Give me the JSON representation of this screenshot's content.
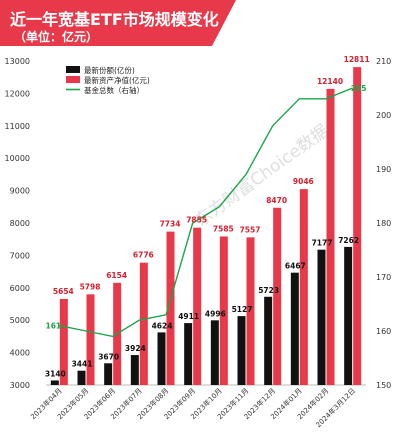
{
  "chart_data": {
    "type": "bar",
    "title": "近一年宽基ETF市场规模变化",
    "subtitle": "（单位：亿元）",
    "watermark": "东方财富Choice数据",
    "categories": [
      "2023年04月",
      "2023年05月",
      "2023年06月",
      "2023年07月",
      "2023年08月",
      "2023年09月",
      "2023年10月",
      "2023年11月",
      "2023年12月",
      "2024年01月",
      "2024年02月",
      "2024年3月12日"
    ],
    "series": [
      {
        "name": "最新份额(亿份)",
        "type": "bar",
        "axis": "left",
        "color": "#111111",
        "values": [
          3140,
          3441,
          3670,
          3924,
          4624,
          4911,
          4996,
          5127,
          5723,
          6467,
          7177,
          7262
        ]
      },
      {
        "name": "最新资产净值(亿元)",
        "type": "bar",
        "axis": "left",
        "color": "#e8394a",
        "values": [
          5654,
          5798,
          6154,
          6776,
          7734,
          7855,
          7585,
          7557,
          8470,
          9046,
          12140,
          12811
        ]
      },
      {
        "name": "基金总数（右轴）",
        "type": "line",
        "axis": "right",
        "color": "#1aa64a",
        "values": [
          161,
          160,
          159,
          162,
          163,
          180,
          183,
          189,
          198,
          203,
          203,
          205
        ]
      }
    ],
    "line_point_labels": {
      "first": "161",
      "last": "205"
    },
    "y_left": {
      "min": 3000,
      "max": 13000,
      "ticks": [
        3000,
        4000,
        5000,
        6000,
        7000,
        8000,
        9000,
        10000,
        11000,
        12000,
        13000
      ]
    },
    "y_right": {
      "min": 150,
      "max": 210,
      "ticks": [
        150,
        160,
        170,
        180,
        190,
        200,
        210
      ]
    },
    "legend": "top-left",
    "grid": false
  },
  "colors": {
    "banner": "#e8394a",
    "label_red": "#d62030"
  }
}
